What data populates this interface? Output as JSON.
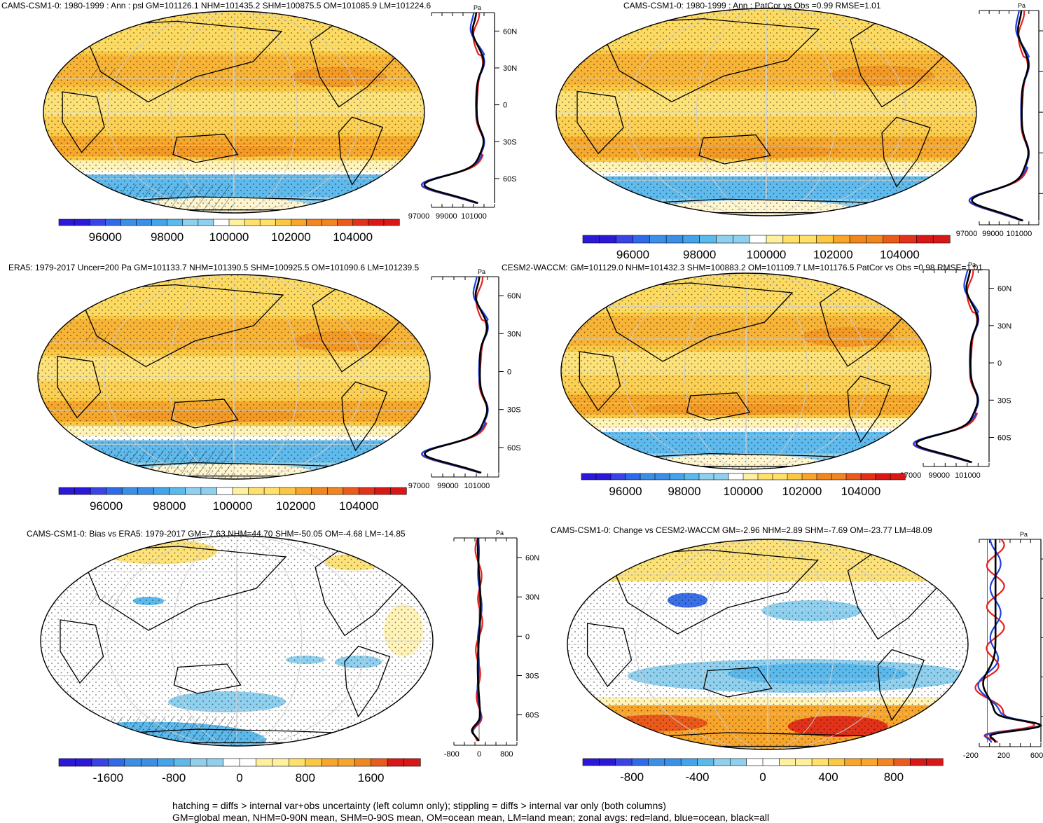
{
  "chart_data": [
    {
      "type": "heatmap",
      "panel": "model-mean",
      "title": "CAMS-CSM1-0: 1980-1999 : Ann : psl GM=101126.1 NHM=101435.2 SHM=100875.5 OM=101085.9 LM=101224.6",
      "colorbar": {
        "ticks": [
          "96000",
          "98000",
          "100000",
          "102000",
          "104000"
        ],
        "range": [
          94500,
          105500
        ]
      },
      "zonal": {
        "xticks": [
          "97000",
          "99000",
          "101000"
        ],
        "xrange": [
          97000,
          102500
        ],
        "unit": "Pa",
        "latticks": [
          "60N",
          "30N",
          "0",
          "30S",
          "60S"
        ]
      },
      "hatching": true
    },
    {
      "type": "heatmap",
      "panel": "model-vs-obs",
      "title": "CAMS-CSM1-0: 1980-1999 : Ann : PatCor vs Obs =0.99 RMSE=1.01",
      "colorbar": {
        "ticks": [
          "96000",
          "98000",
          "100000",
          "102000",
          "104000"
        ],
        "range": [
          94500,
          105500
        ]
      },
      "zonal": {
        "xticks": [
          "97000",
          "99000",
          "101000"
        ],
        "xrange": [
          97000,
          102500
        ],
        "unit": "Pa",
        "latticks": []
      },
      "hatching": false
    },
    {
      "type": "heatmap",
      "panel": "obs",
      "title": "ERA5: 1979-2017 Uncer=200 Pa GM=101133.7 NHM=101390.5 SHM=100925.5 OM=101090.6 LM=101239.5",
      "colorbar": {
        "ticks": [
          "96000",
          "98000",
          "100000",
          "102000",
          "104000"
        ],
        "range": [
          94500,
          105500
        ]
      },
      "zonal": {
        "xticks": [
          "97000",
          "99000",
          "101000"
        ],
        "xrange": [
          97000,
          102500
        ],
        "unit": "Pa",
        "latticks": [
          "60N",
          "30N",
          "0",
          "30S",
          "60S"
        ]
      },
      "hatching": true
    },
    {
      "type": "heatmap",
      "panel": "reference-model",
      "title": "CESM2-WACCM: GM=101129.0 NHM=101432.3 SHM=100883.2 OM=101109.7 LM=101176.5 PatCor vs Obs =0.98 RMSE=1.01",
      "colorbar": {
        "ticks": [
          "96000",
          "98000",
          "100000",
          "102000",
          "104000"
        ],
        "range": [
          94500,
          105500
        ]
      },
      "zonal": {
        "xticks": [
          "97000",
          "99000",
          "101000"
        ],
        "xrange": [
          97000,
          102500
        ],
        "unit": "Pa",
        "latticks": [
          "60N",
          "30N",
          "0",
          "30S",
          "60S"
        ]
      },
      "hatching": false
    },
    {
      "type": "heatmap",
      "panel": "bias",
      "title": "CAMS-CSM1-0: Bias vs ERA5: 1979-2017 GM=-7.63 NHM=44.70 SHM=-50.05 OM=-4.68 LM=-14.85",
      "colorbar": {
        "ticks": [
          "-1600",
          "-800",
          "0",
          "800",
          "1600"
        ],
        "range": [
          -2200,
          2200
        ]
      },
      "zonal": {
        "xticks": [
          "-800",
          "0",
          "800"
        ],
        "xrange": [
          -1100,
          1100
        ],
        "unit": "Pa",
        "latticks": [
          "60N",
          "30N",
          "0",
          "30S",
          "60S"
        ]
      },
      "hatching": true
    },
    {
      "type": "heatmap",
      "panel": "change",
      "title": "CAMS-CSM1-0: Change vs CESM2-WACCM GM=-2.96 NHM=2.89 SHM=-7.69 OM=-23.77 LM=48.09",
      "colorbar": {
        "ticks": [
          "-800",
          "-400",
          "0",
          "400",
          "800"
        ],
        "range": [
          -1100,
          1100
        ]
      },
      "zonal": {
        "xticks": [
          "-200",
          "200",
          "600"
        ],
        "xrange": [
          -250,
          650
        ],
        "unit": "Pa",
        "latticks": []
      },
      "hatching": false
    }
  ],
  "footer": {
    "line1": "hatching = diffs > internal var+obs uncertainty (left column only); stippling = diffs > internal var only (both columns)",
    "line2": "GM=global mean, NHM=0-90N mean, SHM=0-90S mean, OM=ocean mean, LM=land mean; zonal avgs: red=land, blue=ocean, black=all"
  },
  "colors": {
    "land": "#e8201c",
    "ocean": "#1f3fe0",
    "all": "#000000"
  },
  "icons": [
    "map-panel"
  ]
}
